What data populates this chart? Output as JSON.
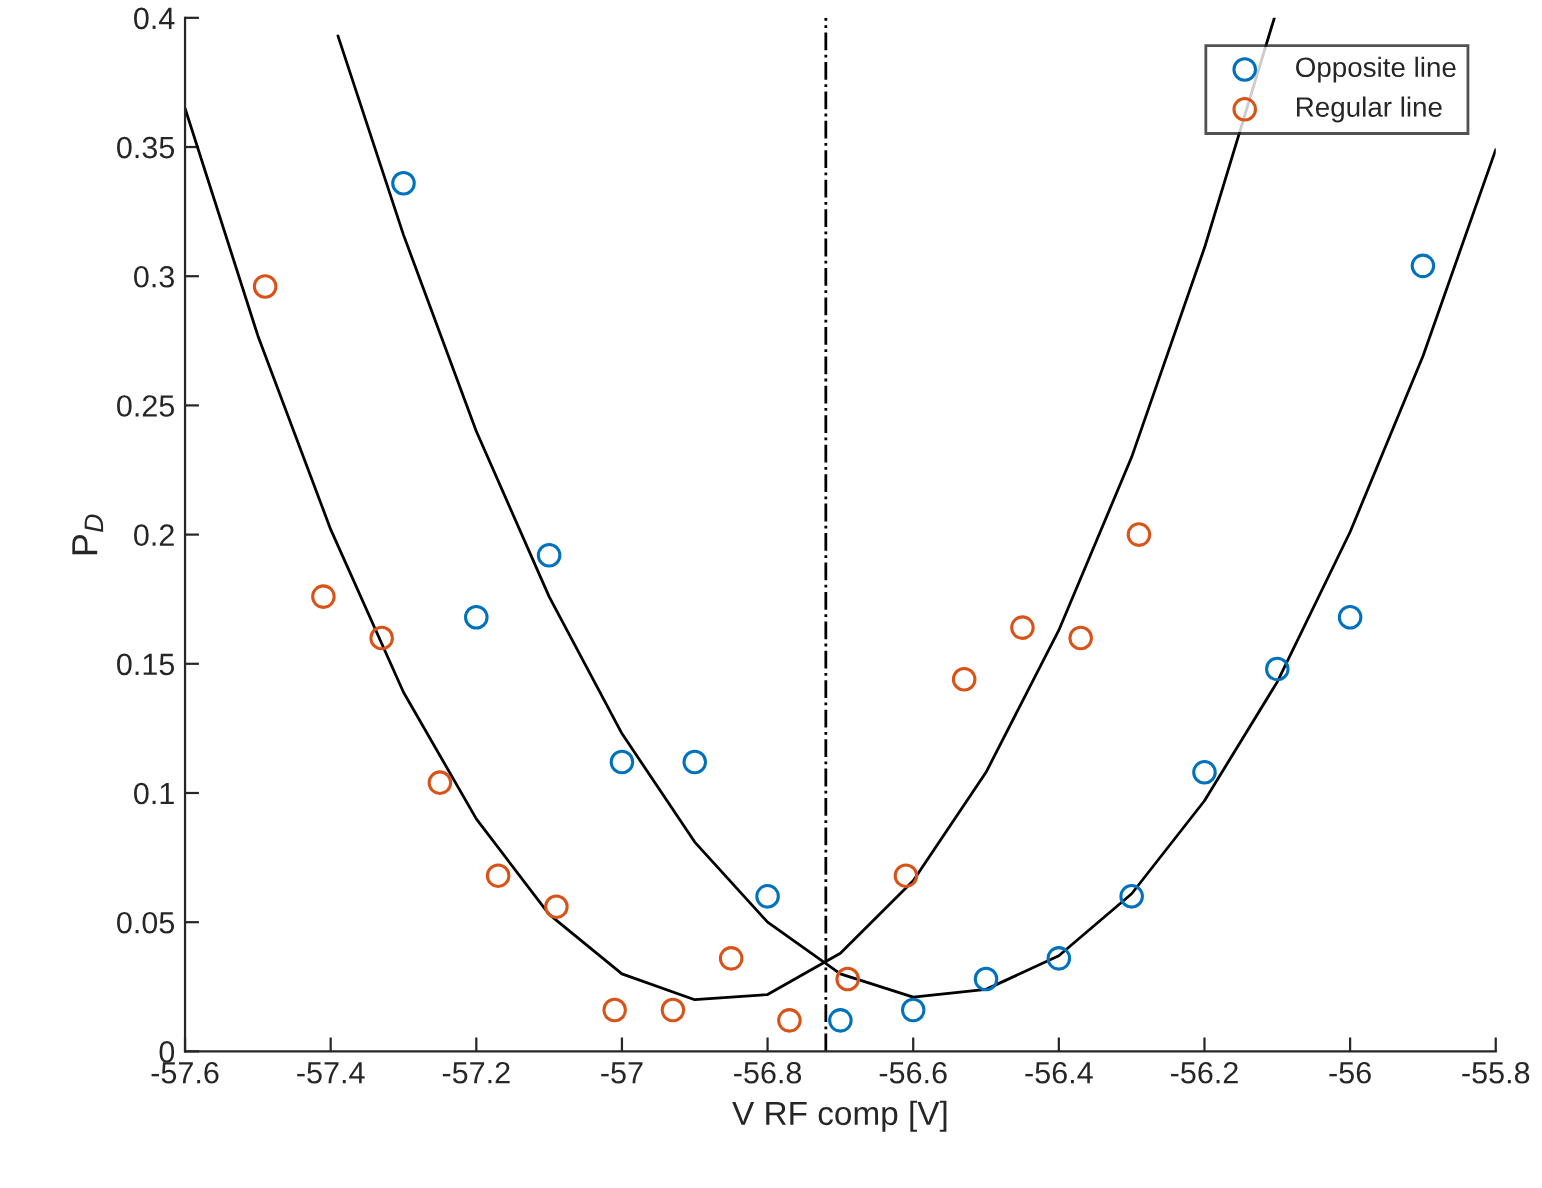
{
  "chart_data": {
    "type": "scatter",
    "xlabel": "V RF comp [V]",
    "ylabel": "P$_{D}$",
    "xlim": [
      -57.6,
      -55.8
    ],
    "ylim": [
      0,
      0.4
    ],
    "xticks": [
      -57.6,
      -57.4,
      -57.2,
      -57,
      -56.8,
      -56.6,
      -56.4,
      -56.2,
      -56,
      -55.8
    ],
    "yticks": [
      0,
      0.05,
      0.1,
      0.15,
      0.2,
      0.25,
      0.3,
      0.35,
      0.4
    ],
    "grid": false,
    "legend": "top right",
    "series": [
      {
        "name": "Opposite line",
        "color": "#0072bd",
        "marker": "circle",
        "x": [
          -57.3,
          -57.2,
          -57.1,
          -57.0,
          -56.9,
          -56.8,
          -56.7,
          -56.6,
          -56.5,
          -56.4,
          -56.3,
          -56.2,
          -56.1,
          -56.0,
          -55.9
        ],
        "values": [
          0.336,
          0.168,
          0.192,
          0.112,
          0.112,
          0.06,
          0.012,
          0.016,
          0.028,
          0.036,
          0.06,
          0.108,
          0.148,
          0.168,
          0.304
        ]
      },
      {
        "name": "Regular line",
        "color": "#d95319",
        "marker": "circle",
        "x": [
          -57.49,
          -57.41,
          -57.33,
          -57.25,
          -57.17,
          -57.09,
          -57.01,
          -56.93,
          -56.85,
          -56.77,
          -56.69,
          -56.61,
          -56.53,
          -56.45,
          -56.37,
          -56.29
        ],
        "values": [
          0.296,
          0.176,
          0.16,
          0.104,
          0.068,
          0.056,
          0.016,
          0.016,
          0.036,
          0.012,
          0.028,
          0.068,
          0.144,
          0.164,
          0.16,
          0.2
        ]
      },
      {
        "type": "line",
        "color": "#000000",
        "line_style": "solid",
        "x": [
          -57.6,
          -57.5,
          -57.4,
          -57.3,
          -57.2,
          -57.1,
          -57.0,
          -56.9,
          -56.8,
          -56.7,
          -56.6,
          -56.5,
          -56.4,
          -56.3,
          -56.2,
          -56.104
        ],
        "values": [
          0.365,
          0.277,
          0.202,
          0.139,
          0.09,
          0.053,
          0.03,
          0.02,
          0.022,
          0.038,
          0.066,
          0.108,
          0.163,
          0.23,
          0.311,
          0.4
        ]
      },
      {
        "type": "line",
        "color": "#000000",
        "line_style": "solid",
        "x": [
          -57.39,
          -57.3,
          -57.2,
          -57.1,
          -57.0,
          -56.9,
          -56.8,
          -56.7,
          -56.6,
          -56.5,
          -56.4,
          -56.3,
          -56.2,
          -56.1,
          -56.0,
          -55.9,
          -55.8
        ],
        "values": [
          0.393,
          0.316,
          0.24,
          0.176,
          0.123,
          0.081,
          0.05,
          0.03,
          0.021,
          0.024,
          0.037,
          0.061,
          0.097,
          0.143,
          0.201,
          0.269,
          0.349
        ]
      }
    ],
    "ref_lines": [
      {
        "axis": "x",
        "value": -56.72,
        "color": "#000000",
        "line_style": "dashdot"
      }
    ]
  }
}
